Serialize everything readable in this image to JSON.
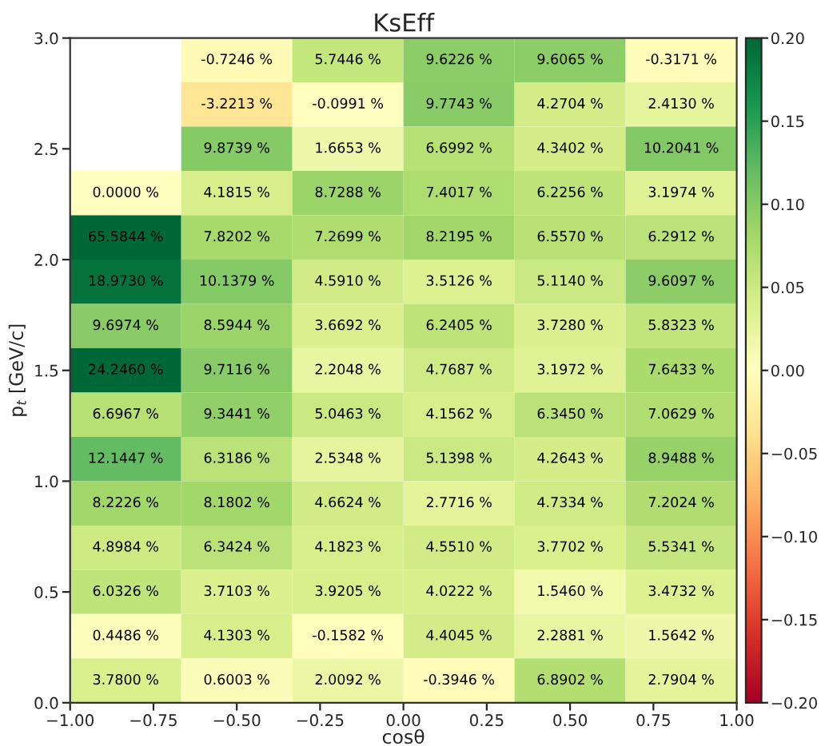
{
  "chart_data": {
    "type": "heatmap",
    "title": "KsEff",
    "xlabel": "cosθ",
    "ylabel": "p$_{t}$ [GeV/c]",
    "cells": [
      [
        null,
        -0.007246,
        0.057446,
        0.096226,
        0.096065,
        -0.003171
      ],
      [
        null,
        -0.032213,
        -0.000991,
        0.097743,
        0.042704,
        0.02413
      ],
      [
        null,
        0.098739,
        0.016653,
        0.066992,
        0.043402,
        0.102041
      ],
      [
        0.0,
        0.041815,
        0.087288,
        0.074017,
        0.062256,
        0.031974
      ],
      [
        0.655844,
        0.078202,
        0.072699,
        0.082195,
        0.06557,
        0.062912
      ],
      [
        0.18973,
        0.101379,
        0.04591,
        0.035126,
        0.05114,
        0.096097
      ],
      [
        0.096974,
        0.085944,
        0.036692,
        0.062405,
        0.03728,
        0.058323
      ],
      [
        0.24246,
        0.097116,
        0.022048,
        0.047687,
        0.031972,
        0.076433
      ],
      [
        0.066967,
        0.093441,
        0.050463,
        0.041562,
        0.06345,
        0.070629
      ],
      [
        0.121447,
        0.063186,
        0.025348,
        0.051398,
        0.042643,
        0.089488
      ],
      [
        0.082226,
        0.081802,
        0.046624,
        0.027716,
        0.047334,
        0.072024
      ],
      [
        0.048984,
        0.063424,
        0.041823,
        0.04551,
        0.037702,
        0.055341
      ],
      [
        0.060326,
        0.037103,
        0.039205,
        0.040222,
        0.01546,
        0.034732
      ],
      [
        0.004486,
        0.041303,
        -0.001582,
        0.044045,
        0.022881,
        0.015642
      ],
      [
        0.0378,
        0.006003,
        0.020092,
        -0.003946,
        0.068902,
        0.027904
      ]
    ],
    "cell_labels": [
      [
        null,
        "-0.7246 %",
        "5.7446 %",
        "9.6226 %",
        "9.6065 %",
        "-0.3171 %"
      ],
      [
        null,
        "-3.2213 %",
        "-0.0991 %",
        "9.7743 %",
        "4.2704 %",
        "2.4130 %"
      ],
      [
        null,
        "9.8739 %",
        "1.6653 %",
        "6.6992 %",
        "4.3402 %",
        "10.2041 %"
      ],
      [
        "0.0000 %",
        "4.1815 %",
        "8.7288 %",
        "7.4017 %",
        "6.2256 %",
        "3.1974 %"
      ],
      [
        "65.5844 %",
        "7.8202 %",
        "7.2699 %",
        "8.2195 %",
        "6.5570 %",
        "6.2912 %"
      ],
      [
        "18.9730 %",
        "10.1379 %",
        "4.5910 %",
        "3.5126 %",
        "5.1140 %",
        "9.6097 %"
      ],
      [
        "9.6974 %",
        "8.5944 %",
        "3.6692 %",
        "6.2405 %",
        "3.7280 %",
        "5.8323 %"
      ],
      [
        "24.2460 %",
        "9.7116 %",
        "2.2048 %",
        "4.7687 %",
        "3.1972 %",
        "7.6433 %"
      ],
      [
        "6.6967 %",
        "9.3441 %",
        "5.0463 %",
        "4.1562 %",
        "6.3450 %",
        "7.0629 %"
      ],
      [
        "12.1447 %",
        "6.3186 %",
        "2.5348 %",
        "5.1398 %",
        "4.2643 %",
        "8.9488 %"
      ],
      [
        "8.2226 %",
        "8.1802 %",
        "4.6624 %",
        "2.7716 %",
        "4.7334 %",
        "7.2024 %"
      ],
      [
        "4.8984 %",
        "6.3424 %",
        "4.1823 %",
        "4.5510 %",
        "3.7702 %",
        "5.5341 %"
      ],
      [
        "6.0326 %",
        "3.7103 %",
        "3.9205 %",
        "4.0222 %",
        "1.5460 %",
        "3.4732 %"
      ],
      [
        "0.4486 %",
        "4.1303 %",
        "-0.1582 %",
        "4.4045 %",
        "2.2881 %",
        "1.5642 %"
      ],
      [
        "3.7800 %",
        "0.6003 %",
        "2.0092 %",
        "-0.3946 %",
        "6.8902 %",
        "2.7904 %"
      ]
    ],
    "xlim": [
      -1,
      1
    ],
    "xticks": [
      {
        "value": -1,
        "label": "−1.00"
      },
      {
        "value": -0.75,
        "label": "−0.75"
      },
      {
        "value": -0.5,
        "label": "−0.50"
      },
      {
        "value": -0.25,
        "label": "−0.25"
      },
      {
        "value": 0,
        "label": "0.00"
      },
      {
        "value": 0.25,
        "label": "0.25"
      },
      {
        "value": 0.5,
        "label": "0.50"
      },
      {
        "value": 0.75,
        "label": "0.75"
      },
      {
        "value": 1,
        "label": "1.00"
      }
    ],
    "ylim": [
      0,
      3
    ],
    "yticks": [
      {
        "value": 0,
        "label": "0.0"
      },
      0.5,
      {
        "value": 1,
        "label": "1.0"
      },
      1.5,
      {
        "value": 2,
        "label": "2.0"
      },
      2.5,
      {
        "value": 3,
        "label": "3.0"
      }
    ],
    "clim": [
      -0.2,
      0.2
    ],
    "cticks": [
      {
        "value": -0.2,
        "label": "−0.20"
      },
      {
        "value": -0.15,
        "label": "−0.15"
      },
      {
        "value": -0.1,
        "label": "−0.10"
      },
      {
        "value": -0.05,
        "label": "−0.05"
      },
      {
        "value": 0,
        "label": "0.00"
      },
      0.05,
      {
        "value": 0.1,
        "label": "0.10"
      },
      0.15,
      {
        "value": 0.2,
        "label": "0.20"
      }
    ]
  }
}
